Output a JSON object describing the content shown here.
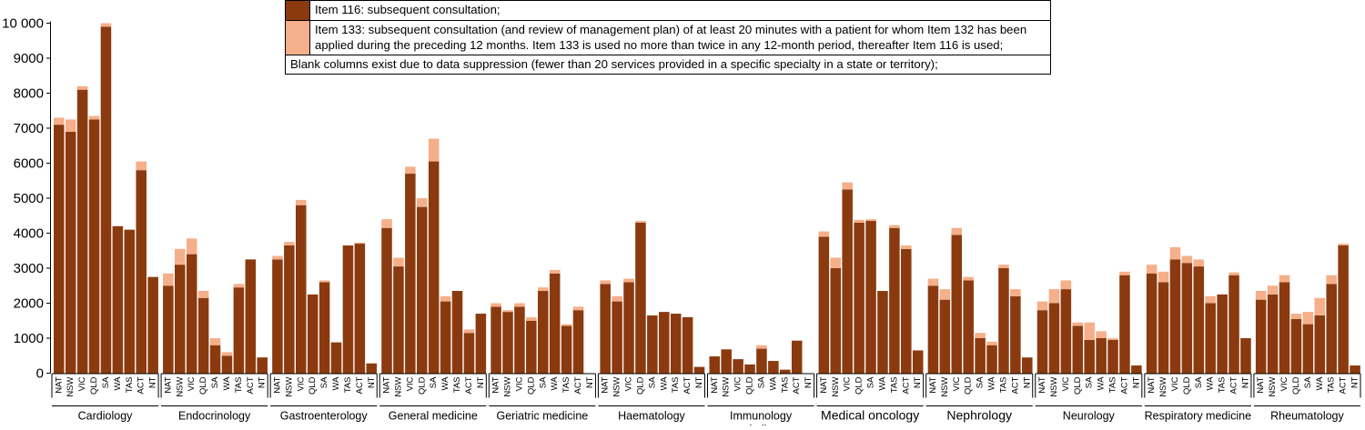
{
  "chart_data": {
    "type": "bar",
    "stacked": true,
    "ylim": [
      0,
      10000
    ],
    "yticks": [
      0,
      1000,
      2000,
      3000,
      4000,
      5000,
      6000,
      7000,
      8000,
      9000,
      10000
    ],
    "ytick_labels": [
      "0",
      "1000",
      "2000",
      "3000",
      "4000",
      "5000",
      "6000",
      "7000",
      "8000",
      "9000",
      "10 000"
    ],
    "states": [
      "NAT",
      "NSW",
      "VIC",
      "QLD",
      "SA",
      "WA",
      "TAS",
      "ACT",
      "NT"
    ],
    "series": [
      {
        "name": "Item 116: subsequent consultation;",
        "color": "#8B3A0F"
      },
      {
        "name": "Item 133: subsequent consultation (and review of management plan) of at least 20 minutes with a patient for whom Item 132 has been applied during the preceding 12 months. Item 133 is used no more than twice in any 12-month period, thereafter Item 116 is used;",
        "color": "#F5AF8A"
      }
    ],
    "note": "Blank columns exist due to data suppression (fewer than 20 services provided in a specific specialty in a state or territory);",
    "groups": [
      {
        "label": "Cardiology",
        "label2": "",
        "item116": [
          7100,
          6900,
          8100,
          7250,
          9900,
          4200,
          4100,
          5800,
          2750
        ],
        "item133": [
          200,
          350,
          100,
          100,
          100,
          0,
          0,
          250,
          0
        ]
      },
      {
        "label": "Endocrinology",
        "label2": "",
        "item116": [
          2500,
          3100,
          3400,
          2150,
          800,
          500,
          2450,
          3250,
          450
        ],
        "item133": [
          350,
          450,
          450,
          200,
          200,
          100,
          100,
          0,
          0
        ]
      },
      {
        "label": "Gastroenterology",
        "label2": "",
        "item116": [
          3250,
          3650,
          4800,
          2250,
          2600,
          880,
          3650,
          3700,
          280
        ],
        "item133": [
          100,
          100,
          150,
          0,
          50,
          0,
          0,
          30,
          0
        ]
      },
      {
        "label": "General medicine",
        "label2": "",
        "item116": [
          4150,
          3050,
          5700,
          4750,
          6050,
          2050,
          2350,
          1150,
          1700
        ],
        "item133": [
          250,
          250,
          200,
          250,
          650,
          150,
          0,
          100,
          0
        ]
      },
      {
        "label": "Geriatric medicine",
        "label2": "",
        "item116": [
          1900,
          1750,
          1900,
          1500,
          2350,
          2850,
          1350,
          1800,
          0
        ],
        "item133": [
          100,
          50,
          100,
          100,
          100,
          100,
          50,
          100,
          0
        ]
      },
      {
        "label": "Haematology",
        "label2": "",
        "item116": [
          2550,
          2050,
          2600,
          4300,
          1650,
          1750,
          1700,
          1600,
          180
        ],
        "item133": [
          100,
          150,
          100,
          50,
          0,
          0,
          0,
          0,
          0
        ]
      },
      {
        "label": "Immunology",
        "label2": "and allergy",
        "item116": [
          480,
          680,
          400,
          250,
          700,
          350,
          100,
          930,
          0
        ],
        "item133": [
          0,
          0,
          0,
          0,
          100,
          0,
          0,
          0,
          0
        ]
      },
      {
        "label": "Medical oncology",
        "label2": "",
        "item116": [
          3900,
          3000,
          5250,
          4300,
          4350,
          2350,
          4150,
          3550,
          650
        ],
        "item133": [
          150,
          300,
          200,
          80,
          50,
          0,
          80,
          100,
          0
        ]
      },
      {
        "label": "Nephrology",
        "label2": "",
        "item116": [
          2500,
          2100,
          3950,
          2650,
          1000,
          800,
          3000,
          2200,
          450
        ],
        "item133": [
          200,
          300,
          200,
          100,
          150,
          100,
          100,
          200,
          0
        ]
      },
      {
        "label": "Neurology",
        "label2": "",
        "item116": [
          1800,
          2000,
          2400,
          1350,
          950,
          1000,
          950,
          2800,
          220
        ],
        "item133": [
          250,
          400,
          250,
          100,
          500,
          200,
          50,
          100,
          0
        ]
      },
      {
        "label": "Respiratory medicine",
        "label2": "",
        "item116": [
          2850,
          2600,
          3250,
          3150,
          3050,
          2000,
          2250,
          2800,
          1000
        ],
        "item133": [
          250,
          300,
          350,
          200,
          200,
          200,
          0,
          80,
          0
        ]
      },
      {
        "label": "Rheumatology",
        "label2": "",
        "item116": [
          2100,
          2250,
          2600,
          1550,
          1400,
          1650,
          2550,
          3650,
          220
        ],
        "item133": [
          250,
          250,
          200,
          150,
          350,
          500,
          250,
          50,
          0
        ]
      }
    ]
  }
}
